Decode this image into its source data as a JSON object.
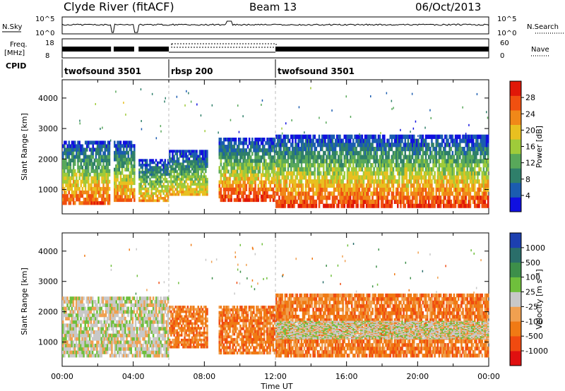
{
  "header": {
    "station": "Clyde River (fitACF)",
    "beam": "Beam 13",
    "date": "06/Oct/2013"
  },
  "top_panels": {
    "nsky_label": "N.Sky",
    "nsky_ticks": [
      "10^5",
      "10^0"
    ],
    "nsearch_label": "N.Search",
    "freq_label_1": "Freq.",
    "freq_label_2": "[MHz]",
    "freq_ticks": [
      "18",
      "8"
    ],
    "nave_ticks": [
      "60",
      "0"
    ],
    "nave_label": "Nave",
    "cpid_label": "CPID",
    "cpid_segments": [
      {
        "label": "twofsound 3501",
        "start_hour": 0
      },
      {
        "label": "rbsp 200",
        "start_hour": 6
      },
      {
        "label": "twofsound 3501",
        "start_hour": 12
      }
    ]
  },
  "axes": {
    "y_label": "Slant Range [km]",
    "y_ticks": [
      "1000",
      "2000",
      "3000",
      "4000"
    ],
    "x_ticks": [
      "00:00",
      "04:00",
      "08:00",
      "12:00",
      "16:00",
      "20:00",
      "00:00"
    ],
    "x_label": "Time UT"
  },
  "colorbars": {
    "power": {
      "label": "Power [dB]",
      "ticks": [
        "4",
        "8",
        "12",
        "16",
        "20",
        "24",
        "28"
      ],
      "colors": [
        "#1010e0",
        "#1b5cb0",
        "#2f7f6a",
        "#58a85a",
        "#9fcb3a",
        "#e8c020",
        "#f08818",
        "#f05010",
        "#e01808"
      ]
    },
    "velocity": {
      "label": "Velocity [m s⁻¹]",
      "ticks": [
        "1000",
        "500",
        "100",
        "25",
        "-25",
        "-100",
        "-500",
        "-1000"
      ],
      "colors": [
        "#1c3fb0",
        "#2a6e6a",
        "#3d8f4a",
        "#6fbf3c",
        "#c8c8c8",
        "#f0a050",
        "#f07a14",
        "#f04a10",
        "#e01010"
      ]
    }
  },
  "chart_data": [
    {
      "type": "heatmap",
      "title": "Clyde River (fitACF) Beam 13 06/Oct/2013",
      "quantity": "Power",
      "unit": "dB",
      "xlabel": "Time UT",
      "ylabel": "Slant Range [km]",
      "xlim": [
        "00:00",
        "24:00"
      ],
      "ylim": [
        200,
        4600
      ],
      "clim": [
        0,
        32
      ],
      "bands": [
        {
          "t_start": 0.0,
          "t_end": 2.7,
          "range_low": 500,
          "range_high": 2600,
          "power_peak": 28
        },
        {
          "t_start": 2.9,
          "t_end": 4.1,
          "range_low": 600,
          "range_high": 2600,
          "power_peak": 26
        },
        {
          "t_start": 4.3,
          "t_end": 6.0,
          "range_low": 600,
          "range_high": 2000,
          "power_peak": 24
        },
        {
          "t_start": 6.0,
          "t_end": 8.2,
          "range_low": 800,
          "range_high": 2300,
          "power_peak": 22
        },
        {
          "t_start": 8.8,
          "t_end": 12.0,
          "range_low": 600,
          "range_high": 2700,
          "power_peak": 30
        },
        {
          "t_start": 12.0,
          "t_end": 24.0,
          "range_low": 400,
          "range_high": 2800,
          "power_peak": 30
        }
      ]
    },
    {
      "type": "heatmap",
      "quantity": "Velocity",
      "unit": "m/s",
      "xlabel": "Time UT",
      "ylabel": "Slant Range [km]",
      "xlim": [
        "00:00",
        "24:00"
      ],
      "ylim": [
        200,
        4600
      ],
      "clim": [
        -1000,
        1000
      ],
      "bands": [
        {
          "t_start": 0.0,
          "t_end": 6.0,
          "range_low": 500,
          "range_high": 2500,
          "velocity_typical": 25
        },
        {
          "t_start": 6.0,
          "t_end": 8.2,
          "range_low": 800,
          "range_high": 2200,
          "velocity_typical": -300
        },
        {
          "t_start": 8.8,
          "t_end": 13.0,
          "range_low": 600,
          "range_high": 2200,
          "velocity_typical": -300
        },
        {
          "t_start": 12.0,
          "t_end": 24.0,
          "range_low": 500,
          "range_high": 2600,
          "velocity_typical": -200
        },
        {
          "t_start": 12.0,
          "t_end": 24.0,
          "range_low": 1100,
          "range_high": 1700,
          "velocity_typical": 0
        }
      ]
    }
  ]
}
